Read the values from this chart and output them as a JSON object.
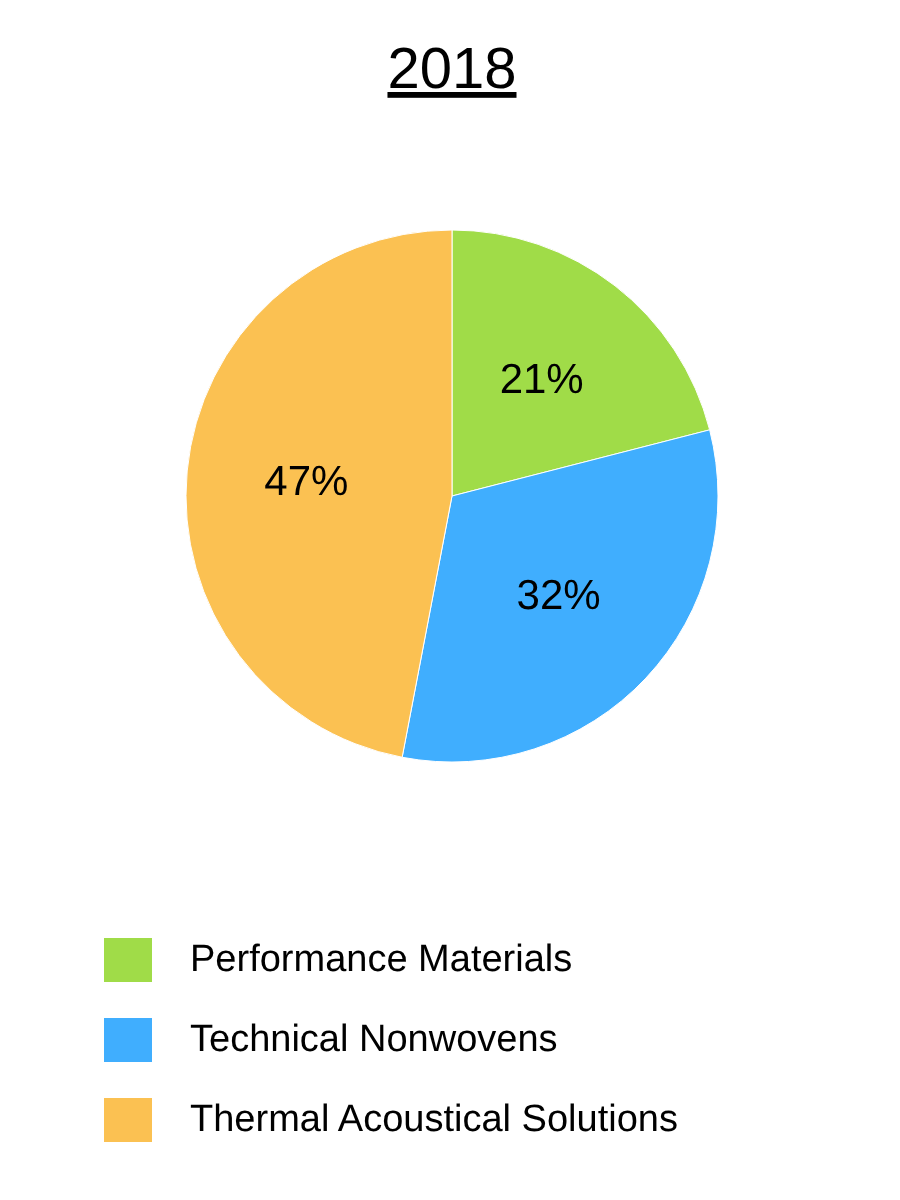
{
  "chart_data": {
    "type": "pie",
    "title": "2018",
    "categories": [
      "Performance Materials",
      "Technical Nonwovens",
      "Thermal Acoustical Solutions"
    ],
    "values": [
      21,
      32,
      47
    ],
    "value_labels": [
      "21%",
      "32%",
      "47%"
    ],
    "colors": [
      "#a0dc48",
      "#40aefe",
      "#fbc152"
    ],
    "legend": "bottom"
  }
}
